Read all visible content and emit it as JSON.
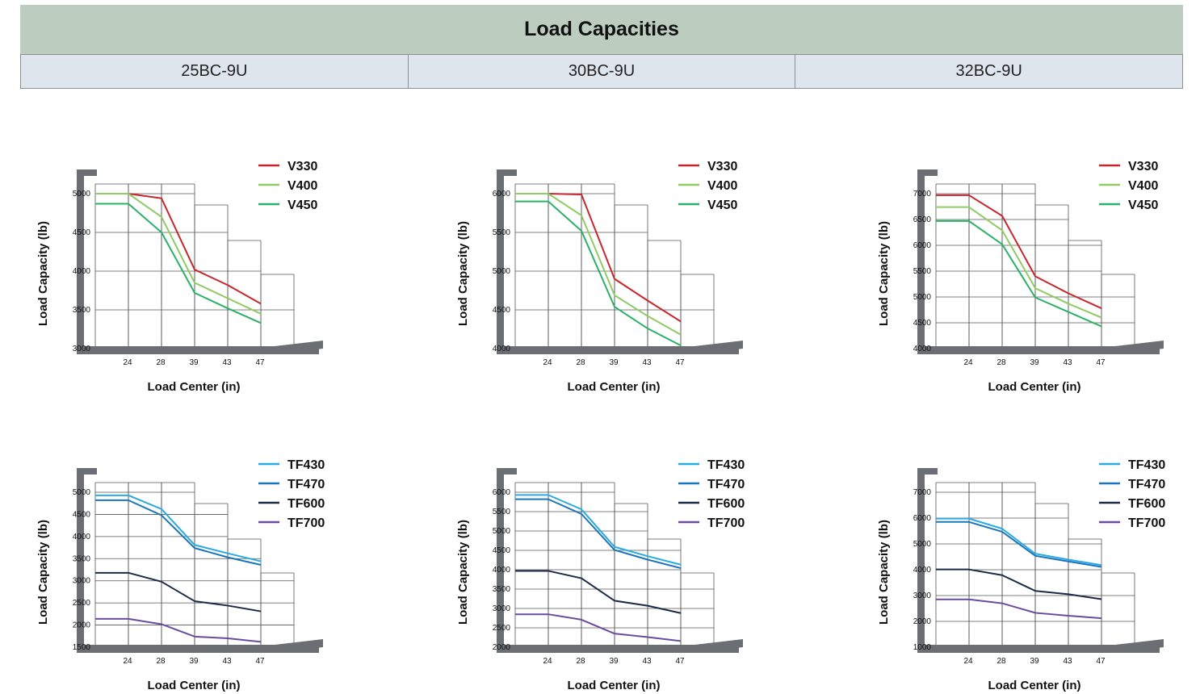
{
  "header": {
    "title": "Load Capacities",
    "models": [
      "25BC-9U",
      "30BC-9U",
      "32BC-9U"
    ]
  },
  "chart_data": [
    {
      "type": "line",
      "model": "25BC-9U",
      "x": [
        "24",
        "28",
        "39",
        "43",
        "47"
      ],
      "xlabel": "Load Center (in)",
      "ylabel": "Load Capacity (lb)",
      "yticks": [
        3000,
        3500,
        4000,
        4500,
        5000
      ],
      "ylim": [
        3000,
        5000
      ],
      "series": [
        {
          "name": "V330",
          "color": "#c8262c",
          "values": [
            5000,
            4940,
            4020,
            3820,
            3580
          ]
        },
        {
          "name": "V400",
          "color": "#8fca63",
          "values": [
            5000,
            4700,
            3850,
            3650,
            3450
          ]
        },
        {
          "name": "V450",
          "color": "#2ab168",
          "values": [
            4870,
            4500,
            3720,
            3520,
            3330
          ]
        }
      ]
    },
    {
      "type": "line",
      "model": "30BC-9U",
      "x": [
        "24",
        "28",
        "39",
        "43",
        "47"
      ],
      "xlabel": "Load Center (in)",
      "ylabel": "Load Capacity (lb)",
      "yticks": [
        4000,
        4500,
        5000,
        5500,
        6000
      ],
      "ylim": [
        4000,
        6000
      ],
      "series": [
        {
          "name": "V330",
          "color": "#c8262c",
          "values": [
            6000,
            5990,
            4900,
            4620,
            4350
          ]
        },
        {
          "name": "V400",
          "color": "#8fca63",
          "values": [
            6000,
            5720,
            4690,
            4420,
            4180
          ]
        },
        {
          "name": "V450",
          "color": "#2ab168",
          "values": [
            5900,
            5520,
            4540,
            4260,
            4040
          ]
        }
      ]
    },
    {
      "type": "line",
      "model": "32BC-9U",
      "x": [
        "24",
        "28",
        "39",
        "43",
        "47"
      ],
      "xlabel": "Load Center (in)",
      "ylabel": "Load Capacity (lb)",
      "yticks": [
        4000,
        4500,
        5000,
        5500,
        6000,
        6500,
        7000
      ],
      "ylim": [
        4000,
        7000
      ],
      "series": [
        {
          "name": "V330",
          "color": "#c8262c",
          "values": [
            6970,
            6570,
            5400,
            5070,
            4780
          ]
        },
        {
          "name": "V400",
          "color": "#8fca63",
          "values": [
            6740,
            6290,
            5170,
            4870,
            4600
          ]
        },
        {
          "name": "V450",
          "color": "#2ab168",
          "values": [
            6470,
            6020,
            4990,
            4710,
            4430
          ]
        }
      ]
    },
    {
      "type": "line",
      "model": "25BC-9U",
      "x": [
        "24",
        "28",
        "39",
        "43",
        "47"
      ],
      "xlabel": "Load Center (in)",
      "ylabel": "Load Capacity (lb)",
      "yticks": [
        1500,
        2000,
        2500,
        3000,
        3500,
        4000,
        4500,
        5000
      ],
      "ylim": [
        1500,
        5000
      ],
      "series": [
        {
          "name": "TF430",
          "color": "#29aae1",
          "values": [
            4930,
            4620,
            3810,
            3620,
            3440
          ]
        },
        {
          "name": "TF470",
          "color": "#1b75bb",
          "values": [
            4820,
            4480,
            3740,
            3530,
            3360
          ]
        },
        {
          "name": "TF600",
          "color": "#1c2a4a",
          "values": [
            3180,
            2980,
            2540,
            2440,
            2310
          ]
        },
        {
          "name": "TF700",
          "color": "#6a4c9c",
          "values": [
            2140,
            2020,
            1740,
            1700,
            1620
          ]
        }
      ]
    },
    {
      "type": "line",
      "model": "30BC-9U",
      "x": [
        "24",
        "28",
        "39",
        "43",
        "47"
      ],
      "xlabel": "Load Center (in)",
      "ylabel": "Load Capacity (lb)",
      "yticks": [
        2000,
        2500,
        3000,
        3500,
        4000,
        4500,
        5000,
        5500,
        6000
      ],
      "ylim": [
        2000,
        6000
      ],
      "series": [
        {
          "name": "TF430",
          "color": "#29aae1",
          "values": [
            5930,
            5560,
            4590,
            4350,
            4130
          ]
        },
        {
          "name": "TF470",
          "color": "#1b75bb",
          "values": [
            5820,
            5440,
            4510,
            4260,
            4040
          ]
        },
        {
          "name": "TF600",
          "color": "#1c2a4a",
          "values": [
            3970,
            3780,
            3200,
            3070,
            2880
          ]
        },
        {
          "name": "TF700",
          "color": "#6a4c9c",
          "values": [
            2850,
            2710,
            2350,
            2260,
            2160
          ]
        }
      ]
    },
    {
      "type": "line",
      "model": "32BC-9U",
      "x": [
        "24",
        "28",
        "39",
        "43",
        "47"
      ],
      "xlabel": "Load Center (in)",
      "ylabel": "Load Capacity (lb)",
      "yticks": [
        1000,
        2000,
        3000,
        4000,
        5000,
        6000,
        7000
      ],
      "ylim": [
        1000,
        7000
      ],
      "series": [
        {
          "name": "TF430",
          "color": "#29aae1",
          "values": [
            5980,
            5590,
            4620,
            4390,
            4180
          ]
        },
        {
          "name": "TF470",
          "color": "#1b75bb",
          "values": [
            5850,
            5470,
            4540,
            4320,
            4110
          ]
        },
        {
          "name": "TF600",
          "color": "#1c2a4a",
          "values": [
            4010,
            3790,
            3180,
            3050,
            2860
          ]
        },
        {
          "name": "TF700",
          "color": "#6a4c9c",
          "values": [
            2850,
            2700,
            2330,
            2220,
            2120
          ]
        }
      ]
    }
  ]
}
